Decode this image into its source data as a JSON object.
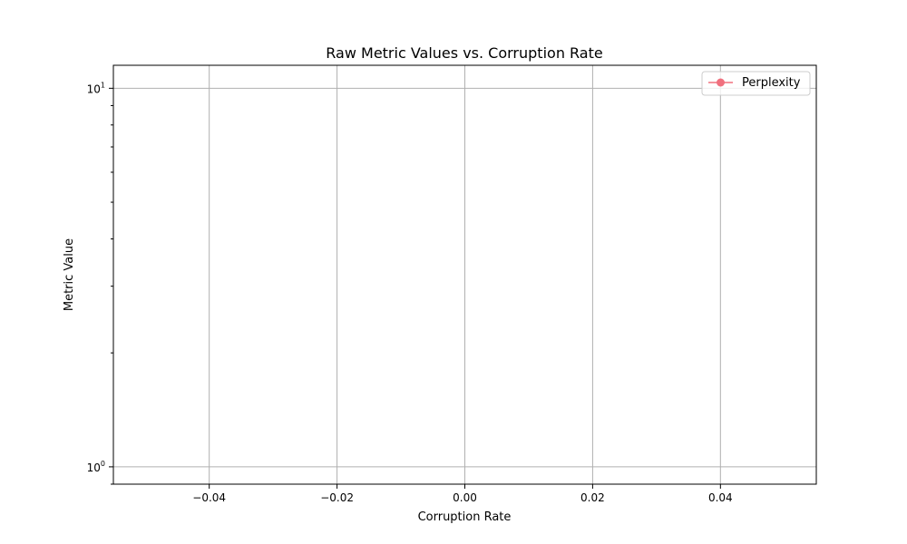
{
  "chart_data": {
    "type": "line",
    "title": "Raw Metric Values vs. Corruption Rate",
    "xlabel": "Corruption Rate",
    "ylabel": "Metric Value",
    "xlim": [
      -0.055,
      0.055
    ],
    "ylim": [
      0.9,
      11.5
    ],
    "y_scale": "log",
    "grid": true,
    "legend_position": "top-right",
    "x_ticks": [
      {
        "value": -0.04,
        "label": "−0.04"
      },
      {
        "value": -0.02,
        "label": "−0.02"
      },
      {
        "value": 0.0,
        "label": "0.00"
      },
      {
        "value": 0.02,
        "label": "0.02"
      },
      {
        "value": 0.04,
        "label": "0.04"
      }
    ],
    "y_ticks": [
      {
        "value": 1,
        "base": "10",
        "exp": "0"
      },
      {
        "value": 10,
        "base": "10",
        "exp": "1"
      }
    ],
    "series": [
      {
        "name": "Perplexity",
        "color": "#f0707e",
        "marker": "circle",
        "x": [],
        "y": []
      }
    ]
  }
}
